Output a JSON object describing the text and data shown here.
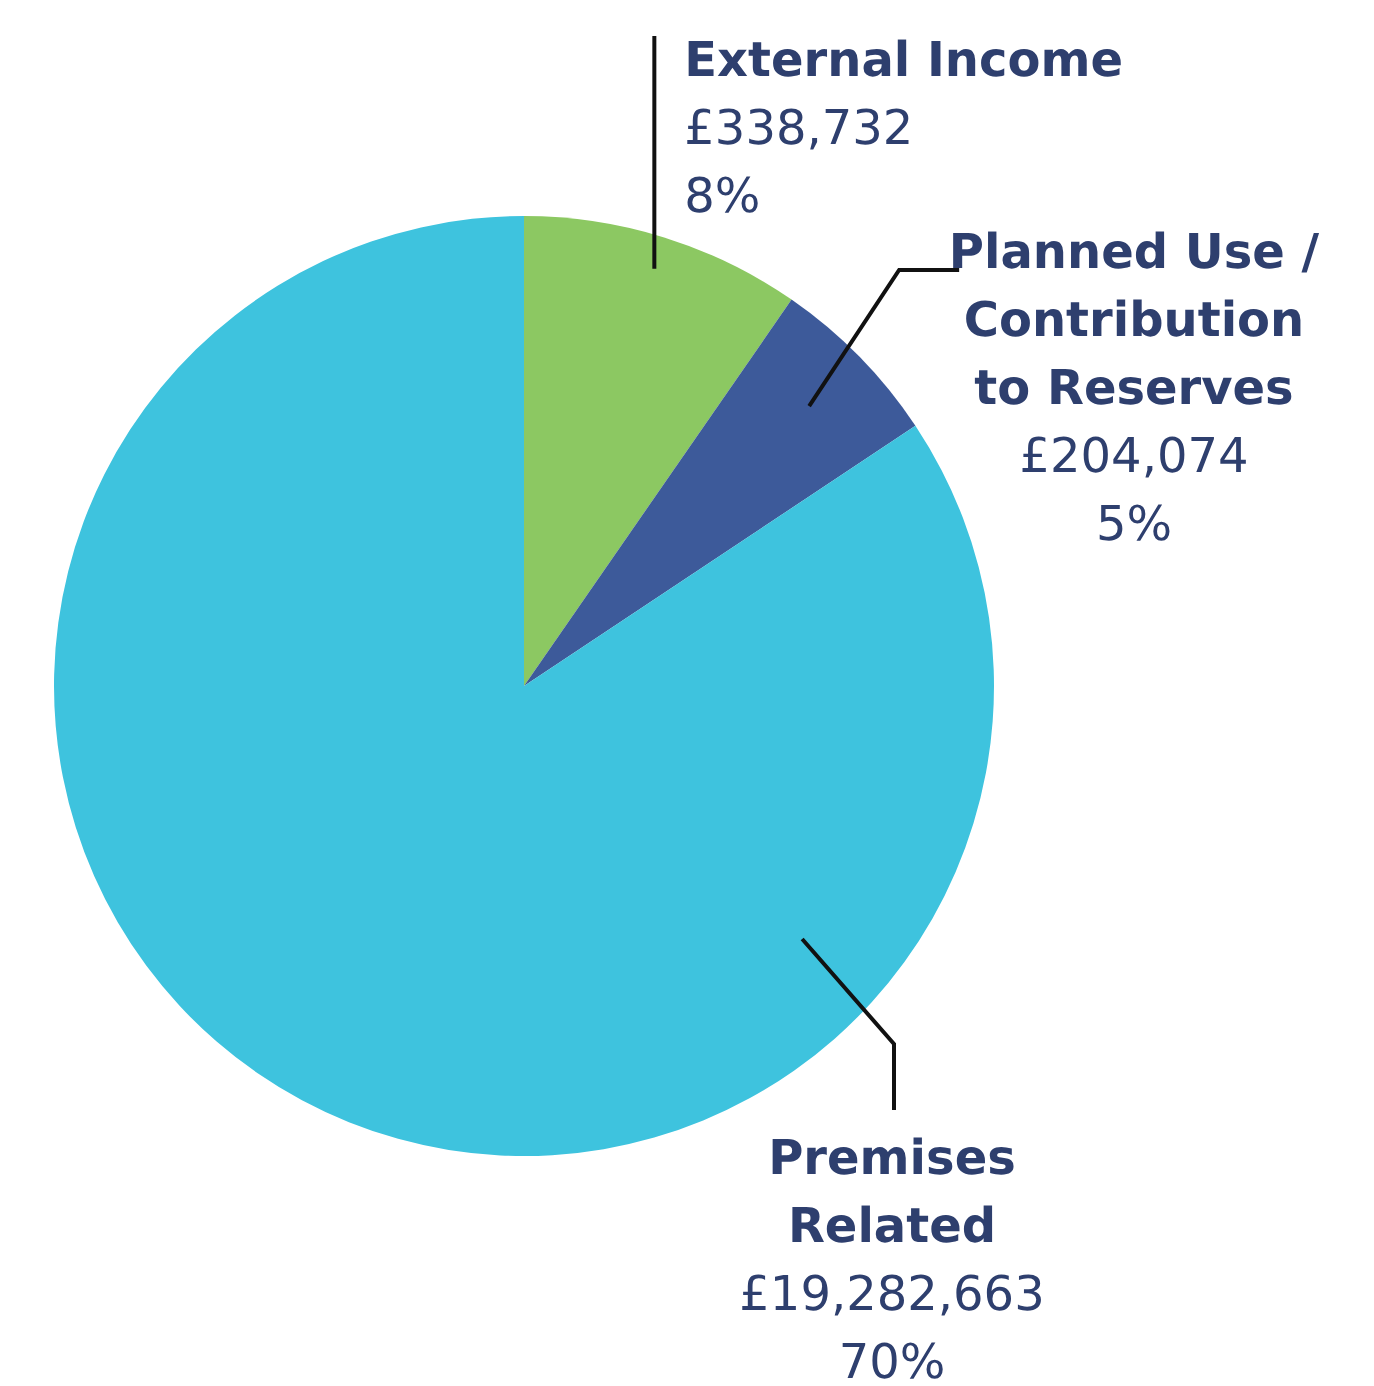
{
  "chart_data": {
    "type": "pie",
    "categories": [
      "External Income",
      "Planned Use / Contribution to Reserves",
      "Premises Related"
    ],
    "values": [
      8,
      5,
      70
    ],
    "colors": [
      "#8cc862",
      "#3d5a9a",
      "#3ec3de"
    ],
    "value_labels": [
      "£338,732\n8%",
      "£204,074\n5%",
      "£19,282,663\n70%"
    ]
  }
}
